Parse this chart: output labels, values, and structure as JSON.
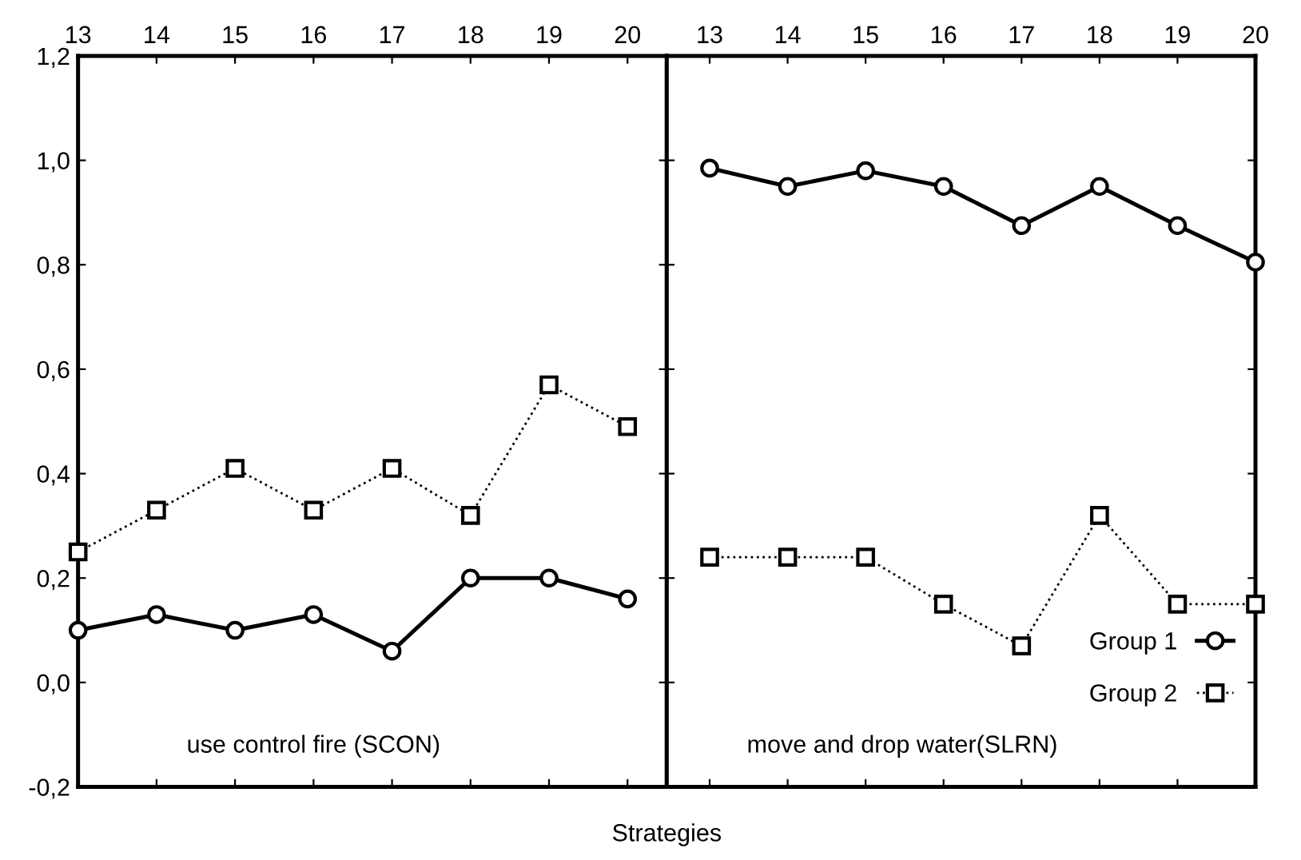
{
  "chart_data": [
    {
      "type": "line",
      "x": [
        13,
        14,
        15,
        16,
        17,
        18,
        19,
        20
      ],
      "xlim": [
        13,
        20.5
      ],
      "xticks": [
        13,
        14,
        15,
        16,
        17,
        18,
        19,
        20
      ],
      "ylim": [
        -0.2,
        1.2
      ],
      "yticks": [
        {
          "value": -0.2,
          "label": "-0,2"
        },
        {
          "value": 0,
          "label": "0,0"
        },
        {
          "value": 0.2,
          "label": "0,2"
        },
        {
          "value": 0.4,
          "label": "0,4"
        },
        {
          "value": 0.6,
          "label": "0,6"
        },
        {
          "value": 0.8,
          "label": "0,8"
        },
        {
          "value": 1.0,
          "label": "1,0"
        },
        {
          "value": 1.2,
          "label": "1,2"
        }
      ],
      "annotations": [
        "use control fire (SCON)"
      ],
      "grid": false,
      "legend": false,
      "series": [
        {
          "color": "#000000",
          "marker": "circle",
          "line_style": "solid",
          "values": [
            0.1,
            0.13,
            0.1,
            0.13,
            0.06,
            0.2,
            0.2,
            0.16
          ]
        },
        {
          "color": "#000000",
          "marker": "square",
          "line_style": "dotted",
          "values": [
            0.25,
            0.33,
            0.41,
            0.33,
            0.41,
            0.32,
            0.57,
            0.49
          ]
        }
      ]
    },
    {
      "type": "line",
      "x": [
        13,
        14,
        15,
        16,
        17,
        18,
        19,
        20
      ],
      "xlim": [
        12.45,
        20
      ],
      "xticks": [
        13,
        14,
        15,
        16,
        17,
        18,
        19,
        20
      ],
      "ylim": [
        -0.2,
        1.2
      ],
      "yticks": [
        {
          "value": -0.2,
          "label": null
        },
        {
          "value": 0,
          "label": null
        },
        {
          "value": 0.2,
          "label": null
        },
        {
          "value": 0.4,
          "label": null
        },
        {
          "value": 0.6,
          "label": null
        },
        {
          "value": 0.8,
          "label": null
        },
        {
          "value": 1.0,
          "label": null
        },
        {
          "value": 1.2,
          "label": null
        }
      ],
      "tick_labels": "x",
      "xlabel": "Strategies",
      "annotations": [
        "move and drop water(SLRN)"
      ],
      "grid": false,
      "legend": "bottom right",
      "series": [
        {
          "name": "Group 1",
          "color": "#000000",
          "marker": "circle",
          "line_style": "solid",
          "values": [
            0.985,
            0.95,
            0.98,
            0.95,
            0.875,
            0.95,
            0.875,
            0.805
          ]
        },
        {
          "name": "Group 2",
          "color": "#000000",
          "marker": "square",
          "line_style": "dotted",
          "values": [
            0.24,
            0.24,
            0.24,
            0.15,
            0.07,
            0.32,
            0.15,
            0.15
          ]
        }
      ]
    }
  ]
}
